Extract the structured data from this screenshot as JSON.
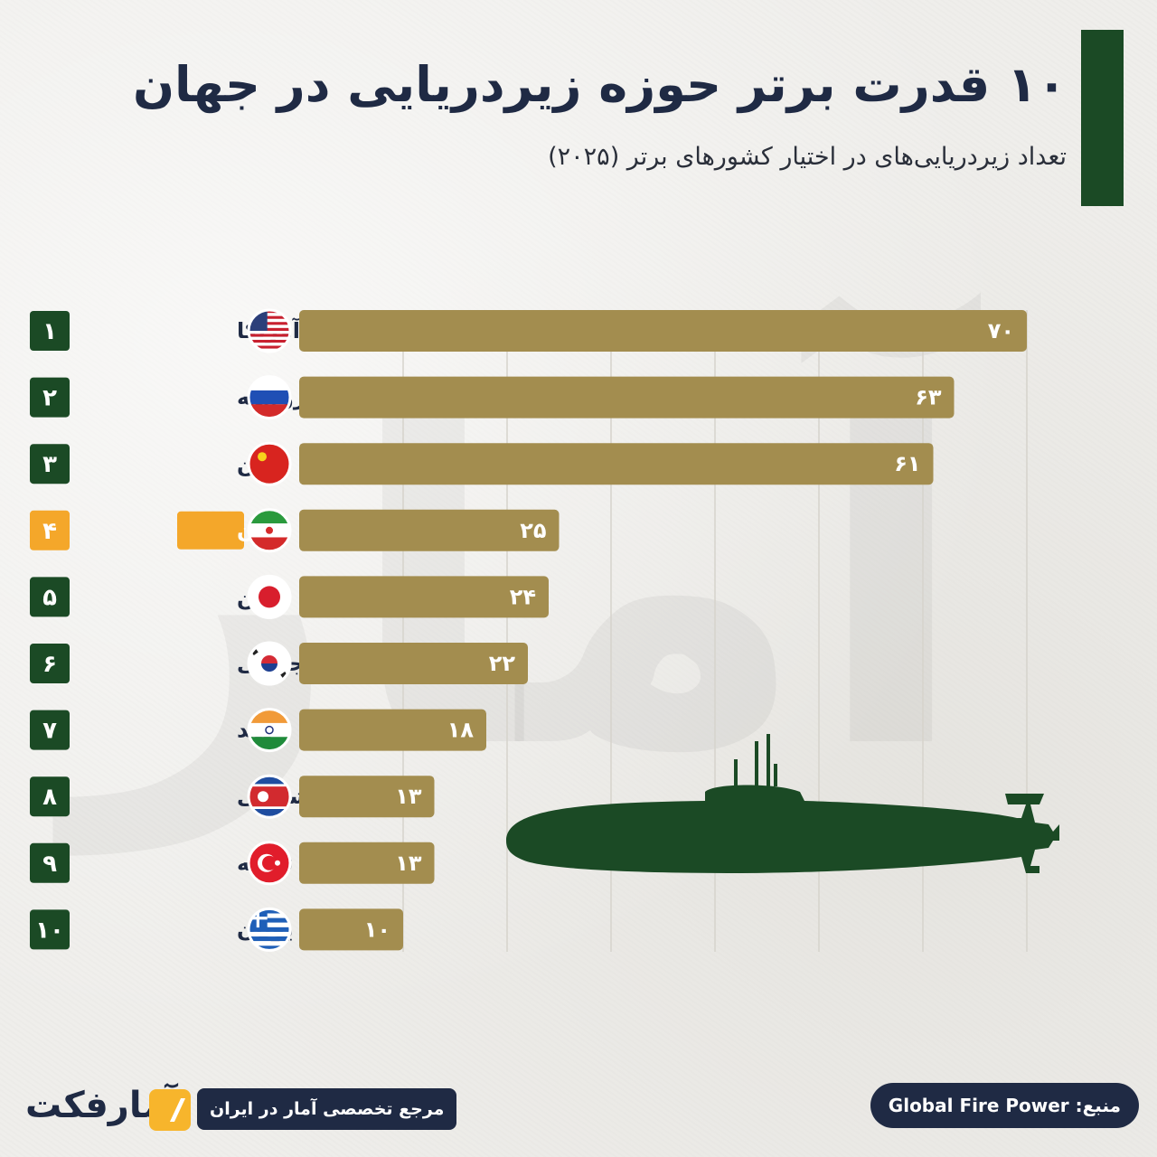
{
  "header": {
    "title": "۱۰ قدرت برتر حوزه زیردریایی در جهان",
    "subtitle": "تعداد زیردریایی‌های در اختیار کشورهای برتر (۲۰۲۵)"
  },
  "colors": {
    "bar": "#a38d4f",
    "rank_box": "#1b4a25",
    "highlight": "#f4a72a",
    "title": "#1f2a44",
    "submarine": "#1b4a25"
  },
  "chart_data": {
    "type": "bar",
    "orientation": "horizontal",
    "title": "۱۰ قدرت برتر حوزه زیردریایی در جهان",
    "subtitle": "تعداد زیردریایی‌های در اختیار کشورهای برتر (۲۰۲۵)",
    "xlim": [
      0,
      70
    ],
    "grid": true,
    "highlighted_category": "ایران",
    "rows": [
      {
        "rank": "۱",
        "country": "آمریکا",
        "flag": "us-flag",
        "value": 70,
        "label": "۷۰"
      },
      {
        "rank": "۲",
        "country": "روسیه",
        "flag": "russia-flag",
        "value": 63,
        "label": "۶۳"
      },
      {
        "rank": "۳",
        "country": "چین",
        "flag": "china-flag",
        "value": 61,
        "label": "۶۱"
      },
      {
        "rank": "۴",
        "country": "ایران",
        "flag": "iran-flag",
        "value": 25,
        "label": "۲۵",
        "highlight": true
      },
      {
        "rank": "۵",
        "country": "ژاپن",
        "flag": "japan-flag",
        "value": 24,
        "label": "۲۴"
      },
      {
        "rank": "۶",
        "country": "کره جنوبی",
        "flag": "south-korea-flag",
        "value": 22,
        "label": "۲۲"
      },
      {
        "rank": "۷",
        "country": "هند",
        "flag": "india-flag",
        "value": 18,
        "label": "۱۸"
      },
      {
        "rank": "۸",
        "country": "کره شمالی",
        "flag": "north-korea-flag",
        "value": 13,
        "label": "۱۳"
      },
      {
        "rank": "۹",
        "country": "ترکیه",
        "flag": "turkey-flag",
        "value": 13,
        "label": "۱۳"
      },
      {
        "rank": "۱۰",
        "country": "یونان",
        "flag": "greece-flag",
        "value": 10,
        "label": "۱۰"
      }
    ]
  },
  "footer": {
    "logo_text": "آمارفکت",
    "tagline": "مرجع تخصصی آمار در ایران",
    "source": "منبع: Global Fire Power"
  }
}
